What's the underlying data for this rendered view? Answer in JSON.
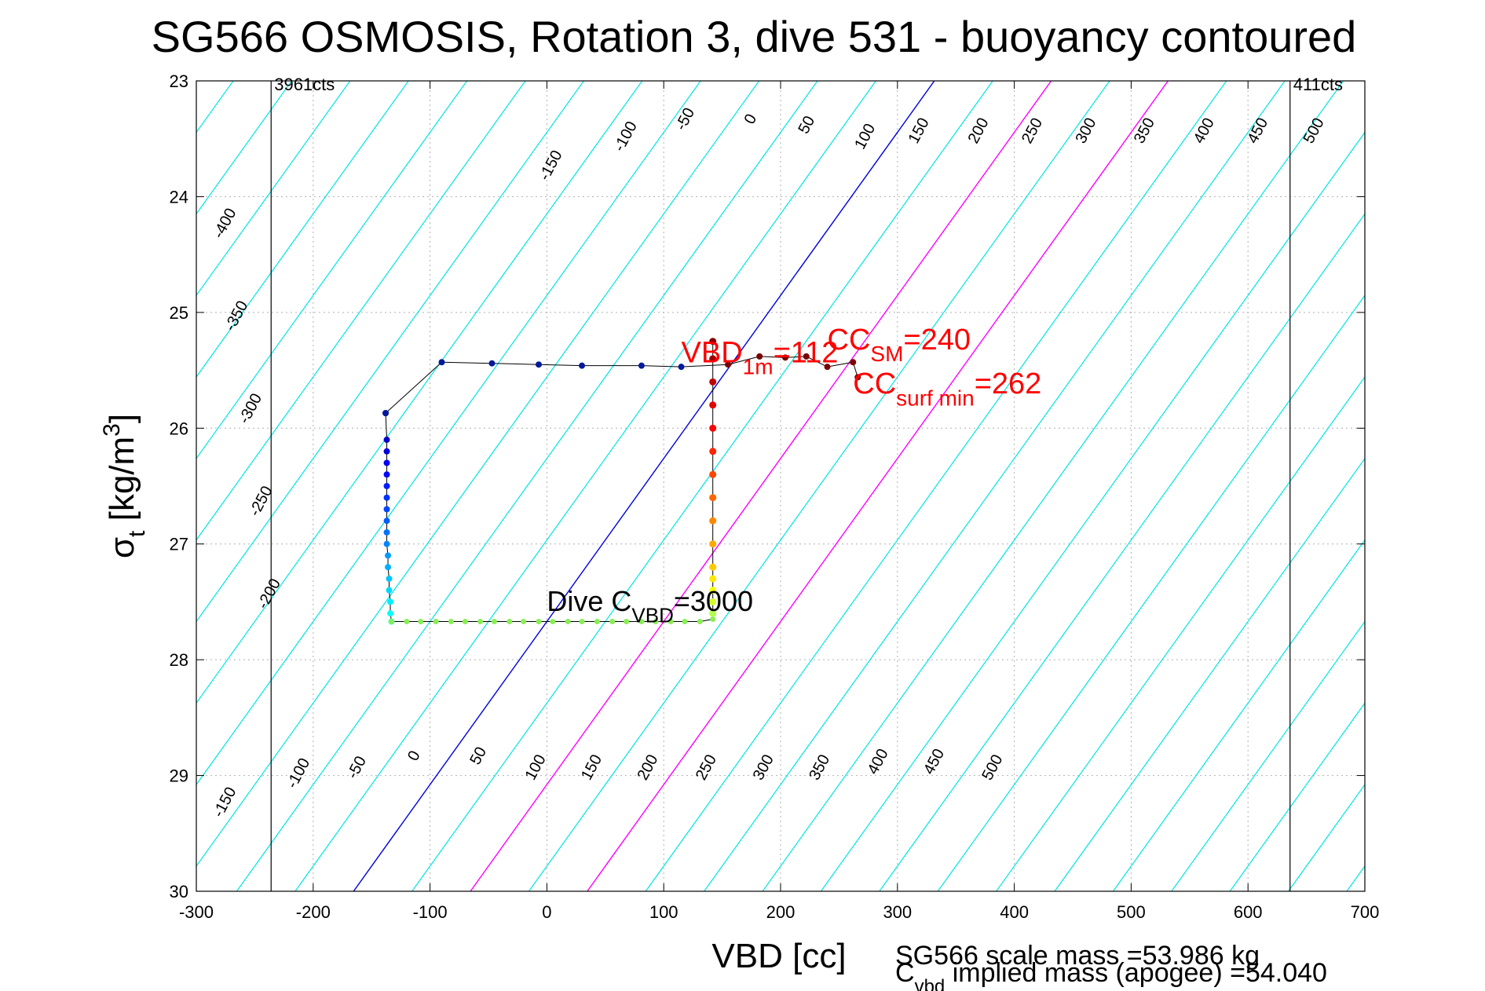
{
  "title": "SG566 OSMOSIS, Rotation 3, dive 531 - buoyancy contoured",
  "chart_data": {
    "type": "scatter",
    "xlabel": "VBD [cc]",
    "ylabel_main": "σ",
    "ylabel_sub": "t",
    "ylabel_rest": " [kg/m",
    "ylabel_sup": "3",
    "ylabel_end": "]",
    "xlim": [
      -300,
      700
    ],
    "ylim": [
      30,
      23
    ],
    "xticks": [
      -300,
      -200,
      -100,
      0,
      100,
      200,
      300,
      400,
      500,
      600,
      700
    ],
    "yticks": [
      23,
      24,
      25,
      26,
      27,
      28,
      29,
      30
    ],
    "grid": true,
    "contour_values": [
      -400,
      -350,
      -300,
      -250,
      -200,
      -150,
      -100,
      -50,
      0,
      50,
      100,
      150,
      200,
      250,
      300,
      350,
      400,
      450,
      500
    ],
    "contour_colors": {
      "default": "#00e5e5",
      "zero": "#0000dd",
      "cc_sm": "#ff00ff",
      "cc_surf": "#ff00ff"
    },
    "contour_labels_top": [
      {
        "v": -400,
        "x": -272,
        "y": 24.25
      },
      {
        "v": -350,
        "x": -262,
        "y": 25.05
      },
      {
        "v": -300,
        "x": -250,
        "y": 25.85
      },
      {
        "v": -250,
        "x": -241,
        "y": 26.65
      },
      {
        "v": -200,
        "x": -234,
        "y": 27.45
      },
      {
        "v": -150,
        "x": 7,
        "y": 23.75
      },
      {
        "v": -100,
        "x": 71,
        "y": 23.5
      },
      {
        "v": -50,
        "x": 122,
        "y": 23.35
      },
      {
        "v": 0,
        "x": 178,
        "y": 23.35
      },
      {
        "v": 50,
        "x": 226,
        "y": 23.4
      },
      {
        "v": 100,
        "x": 276,
        "y": 23.5
      },
      {
        "v": 150,
        "x": 322,
        "y": 23.45
      },
      {
        "v": 200,
        "x": 373,
        "y": 23.45
      },
      {
        "v": 250,
        "x": 419,
        "y": 23.45
      },
      {
        "v": 300,
        "x": 465,
        "y": 23.45
      },
      {
        "v": 350,
        "x": 515,
        "y": 23.45
      },
      {
        "v": 400,
        "x": 566,
        "y": 23.45
      },
      {
        "v": 450,
        "x": 612,
        "y": 23.45
      },
      {
        "v": 500,
        "x": 660,
        "y": 23.45
      }
    ],
    "contour_labels_bottom": [
      {
        "v": -150,
        "x": -272,
        "y": 29.25
      },
      {
        "v": -100,
        "x": -209,
        "y": 29.0
      },
      {
        "v": -50,
        "x": -159,
        "y": 28.95
      },
      {
        "v": 0,
        "x": -110,
        "y": 28.85
      },
      {
        "v": 50,
        "x": -55,
        "y": 28.85
      },
      {
        "v": 100,
        "x": -6,
        "y": 28.95
      },
      {
        "v": 150,
        "x": 42,
        "y": 28.95
      },
      {
        "v": 200,
        "x": 90,
        "y": 28.95
      },
      {
        "v": 250,
        "x": 140,
        "y": 28.95
      },
      {
        "v": 300,
        "x": 189,
        "y": 28.95
      },
      {
        "v": 350,
        "x": 237,
        "y": 28.95
      },
      {
        "v": 400,
        "x": 287,
        "y": 28.9
      },
      {
        "v": 450,
        "x": 335,
        "y": 28.9
      },
      {
        "v": 500,
        "x": 385,
        "y": 28.95
      }
    ],
    "vertical_lines": [
      {
        "x": -236,
        "label": "3961cts"
      },
      {
        "x": 636,
        "label": "411cts"
      }
    ],
    "series": [
      {
        "points_dive": [
          [
            -138,
            25.87
          ],
          [
            -137,
            26.1
          ],
          [
            -137,
            26.2
          ],
          [
            -137,
            26.3
          ],
          [
            -137,
            26.4
          ],
          [
            -137,
            26.5
          ],
          [
            -137,
            26.6
          ],
          [
            -137,
            26.7
          ],
          [
            -137,
            26.8
          ],
          [
            -137,
            26.9
          ],
          [
            -137,
            27.0
          ],
          [
            -136,
            27.1
          ],
          [
            -136,
            27.2
          ],
          [
            -135,
            27.3
          ],
          [
            -135,
            27.4
          ],
          [
            -134,
            27.5
          ],
          [
            -134,
            27.6
          ],
          [
            -133,
            27.67
          ]
        ],
        "points_bottom": [
          [
            -133,
            27.67
          ],
          [
            -120,
            27.67
          ],
          [
            -108,
            27.67
          ],
          [
            -95,
            27.67
          ],
          [
            -82,
            27.67
          ],
          [
            -70,
            27.67
          ],
          [
            -57,
            27.67
          ],
          [
            -45,
            27.67
          ],
          [
            -32,
            27.67
          ],
          [
            -20,
            27.67
          ],
          [
            -7,
            27.67
          ],
          [
            5,
            27.67
          ],
          [
            18,
            27.67
          ],
          [
            30,
            27.67
          ],
          [
            43,
            27.67
          ],
          [
            56,
            27.67
          ],
          [
            68,
            27.67
          ],
          [
            81,
            27.67
          ],
          [
            93,
            27.67
          ],
          [
            106,
            27.67
          ],
          [
            118,
            27.67
          ],
          [
            131,
            27.67
          ],
          [
            142,
            27.65
          ]
        ],
        "points_climb": [
          [
            142,
            27.6
          ],
          [
            142,
            27.5
          ],
          [
            142,
            27.4
          ],
          [
            142,
            27.3
          ],
          [
            142,
            27.2
          ],
          [
            142,
            27.0
          ],
          [
            142,
            26.8
          ],
          [
            142,
            26.6
          ],
          [
            142,
            26.4
          ],
          [
            142,
            26.2
          ],
          [
            142,
            26.0
          ],
          [
            142,
            25.8
          ],
          [
            142,
            25.6
          ],
          [
            142,
            25.4
          ],
          [
            142,
            25.25
          ]
        ],
        "points_surface_track": [
          [
            -138,
            25.87
          ],
          [
            -90,
            25.43
          ],
          [
            -47,
            25.44
          ],
          [
            -7,
            25.45
          ],
          [
            30,
            25.46
          ],
          [
            81,
            25.46
          ],
          [
            115,
            25.47
          ],
          [
            155,
            25.45
          ],
          [
            182,
            25.38
          ],
          [
            204,
            25.39
          ],
          [
            222,
            25.38
          ],
          [
            240,
            25.47
          ],
          [
            262,
            25.43
          ],
          [
            266,
            25.56
          ]
        ]
      }
    ],
    "annotations": {
      "dive_cvbd": {
        "main": "Dive C",
        "sub": "VBD",
        "rest": "=3000",
        "x": 0,
        "y": 27.58
      },
      "vbd_1m": {
        "main": "VBD",
        "sub": "1m",
        "rest": "=112",
        "x": 115,
        "y": 25.43
      },
      "cc_sm": {
        "main": "CC",
        "sub": "SM",
        "rest": "=240",
        "x": 240,
        "y": 25.32
      },
      "cc_surf_min": {
        "main": "CC",
        "sub": "surf min",
        "rest": "=262",
        "x": 262,
        "y": 25.7
      }
    }
  },
  "footer": {
    "line1": "SG566 scale mass =53.986 kg",
    "line2_main": "C",
    "line2_sub": "vbd",
    "line2_rest": " implied mass (apogee) =54.040"
  }
}
